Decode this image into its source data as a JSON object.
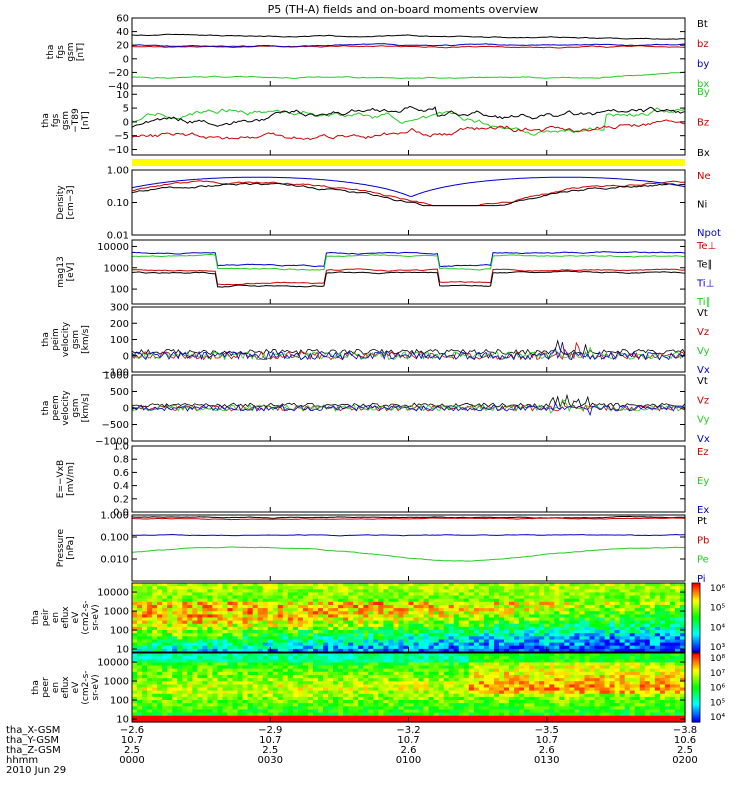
{
  "title": "P5 (TH-A) fields and on-board moments overview",
  "colors": {
    "black": "#000000",
    "red": "#cc0000",
    "green": "#22cc22",
    "blue": "#0000cc",
    "yellow": "#ffff00"
  },
  "chart_data": [
    {
      "type": "line",
      "ylabel": [
        "tha",
        "fgs",
        "gsm",
        "[nT]"
      ],
      "ylim": [
        -40,
        60
      ],
      "yticks": [
        "60",
        "40",
        "20",
        "0",
        "−20",
        "−40"
      ],
      "ytick_values": [
        60,
        40,
        20,
        0,
        -20,
        -40
      ],
      "series": [
        {
          "name": "Bt",
          "color": "black",
          "level": 35
        },
        {
          "name": "bz",
          "color": "red",
          "level": 18
        },
        {
          "name": "by",
          "color": "blue",
          "level": 20
        },
        {
          "name": "bx",
          "color": "green",
          "level": -27
        }
      ]
    },
    {
      "type": "line",
      "ylabel": [
        "tha",
        "fgs",
        "gsm",
        "−T89",
        "[nT]"
      ],
      "ylim": [
        -12,
        13
      ],
      "yticks": [
        "10",
        "5",
        "0",
        "−5",
        "−10"
      ],
      "ytick_values": [
        10,
        5,
        0,
        -5,
        -10
      ],
      "series": [
        {
          "name": "By",
          "color": "green"
        },
        {
          "name": "Bz",
          "color": "red"
        },
        {
          "name": "Bx",
          "color": "black"
        }
      ]
    },
    {
      "type": "line",
      "ylabel": [
        "Density",
        "[cm−3]"
      ],
      "scale": "log",
      "ylim": [
        0.01,
        1.0
      ],
      "yticks": [
        "1.00",
        "0.10",
        "0.01"
      ],
      "ytick_values": [
        1.0,
        0.1,
        0.01
      ],
      "series": [
        {
          "name": "Ne",
          "color": "red"
        },
        {
          "name": "Ni",
          "color": "black"
        },
        {
          "name": "Npot",
          "color": "blue"
        }
      ]
    },
    {
      "type": "line",
      "ylabel": [
        "mag13",
        "[eV]"
      ],
      "scale": "log",
      "ylim": [
        20,
        20000
      ],
      "yticks": [
        "10000",
        "1000",
        "100"
      ],
      "ytick_values": [
        10000,
        1000,
        100
      ],
      "series": [
        {
          "name": "Te⊥",
          "color": "red"
        },
        {
          "name": "Te∥",
          "color": "black"
        },
        {
          "name": "Ti⊥",
          "color": "blue"
        },
        {
          "name": "Ti∥",
          "color": "green"
        }
      ]
    },
    {
      "type": "line",
      "ylabel": [
        "tha",
        "peim",
        "velocity",
        "gsm",
        "[km/s]"
      ],
      "ylim": [
        -100,
        300
      ],
      "yticks": [
        "300",
        "200",
        "100",
        "0",
        "−100"
      ],
      "ytick_values": [
        300,
        200,
        100,
        0,
        -100
      ],
      "series": [
        {
          "name": "Vt",
          "color": "black"
        },
        {
          "name": "Vz",
          "color": "red"
        },
        {
          "name": "Vy",
          "color": "green"
        },
        {
          "name": "Vx",
          "color": "blue"
        }
      ]
    },
    {
      "type": "line",
      "ylabel": [
        "tha",
        "peem",
        "velocity",
        "gsm",
        "[km/s]"
      ],
      "ylim": [
        -1000,
        1000
      ],
      "yticks": [
        "1000",
        "500",
        "0",
        "−500",
        "−1000"
      ],
      "ytick_values": [
        1000,
        500,
        0,
        -500,
        -1000
      ],
      "series": [
        {
          "name": "Vt",
          "color": "black"
        },
        {
          "name": "Vz",
          "color": "red"
        },
        {
          "name": "Vy",
          "color": "green"
        },
        {
          "name": "Vx",
          "color": "blue"
        }
      ]
    },
    {
      "type": "line",
      "ylabel": [
        "E=−VxB",
        "[mV/m]"
      ],
      "ylim": [
        0,
        1.0
      ],
      "yticks": [
        "1.0",
        "0.8",
        "0.6",
        "0.4",
        "0.2",
        "0.0"
      ],
      "ytick_values": [
        1.0,
        0.8,
        0.6,
        0.4,
        0.2,
        0.0
      ],
      "series": [
        {
          "name": "Ez",
          "color": "red"
        },
        {
          "name": "Ey",
          "color": "green"
        },
        {
          "name": "Ex",
          "color": "blue"
        }
      ]
    },
    {
      "type": "line",
      "ylabel": [
        "Pressure",
        "[nPa]"
      ],
      "scale": "log",
      "ylim": [
        0.001,
        1.0
      ],
      "yticks": [
        "1.000",
        "0.100",
        "0.010"
      ],
      "ytick_values": [
        1.0,
        0.1,
        0.01
      ],
      "series": [
        {
          "name": "Pt",
          "color": "black"
        },
        {
          "name": "Pb",
          "color": "red"
        },
        {
          "name": "Pe",
          "color": "green"
        },
        {
          "name": "Pi",
          "color": "blue"
        }
      ]
    },
    {
      "type": "heatmap",
      "ylabel": [
        "tha",
        "peir",
        "en",
        "eflux",
        "eV",
        "(cm2-s-",
        "sr-eV)"
      ],
      "scale": "log",
      "ylim": [
        7,
        30000
      ],
      "yticks": [
        "10000",
        "1000",
        "100",
        "10"
      ],
      "ytick_values": [
        10000,
        1000,
        100,
        10
      ],
      "colorbar": {
        "labels": [
          "10⁶",
          "10⁵",
          "10⁴",
          "10³"
        ]
      }
    },
    {
      "type": "heatmap",
      "ylabel": [
        "tha",
        "peer",
        "en",
        "eflux",
        "eV",
        "(cm2-s-",
        "sr-eV)"
      ],
      "scale": "log",
      "ylim": [
        7,
        30000
      ],
      "yticks": [
        "10000",
        "1000",
        "100",
        "10"
      ],
      "ytick_values": [
        10000,
        1000,
        100,
        10
      ],
      "colorbar": {
        "labels": [
          "10⁸",
          "10⁷",
          "10⁶",
          "10⁵",
          "10⁴"
        ]
      }
    }
  ],
  "xaxis": {
    "row_labels": [
      "tha_X-GSM",
      "tha_Y-GSM",
      "tha_Z-GSM",
      "hhmm",
      "2010 Jun 29"
    ],
    "ticks": [
      {
        "X": "−2.6",
        "Y": "10.7",
        "Z": "2.5",
        "t": "0000"
      },
      {
        "X": "−2.9",
        "Y": "10.7",
        "Z": "2.5",
        "t": "0030"
      },
      {
        "X": "−3.2",
        "Y": "10.7",
        "Z": "2.6",
        "t": "0100"
      },
      {
        "X": "−3.5",
        "Y": "10.7",
        "Z": "2.6",
        "t": "0130"
      },
      {
        "X": "−3.8",
        "Y": "10.6",
        "Z": "2.5",
        "t": "0200"
      }
    ]
  }
}
